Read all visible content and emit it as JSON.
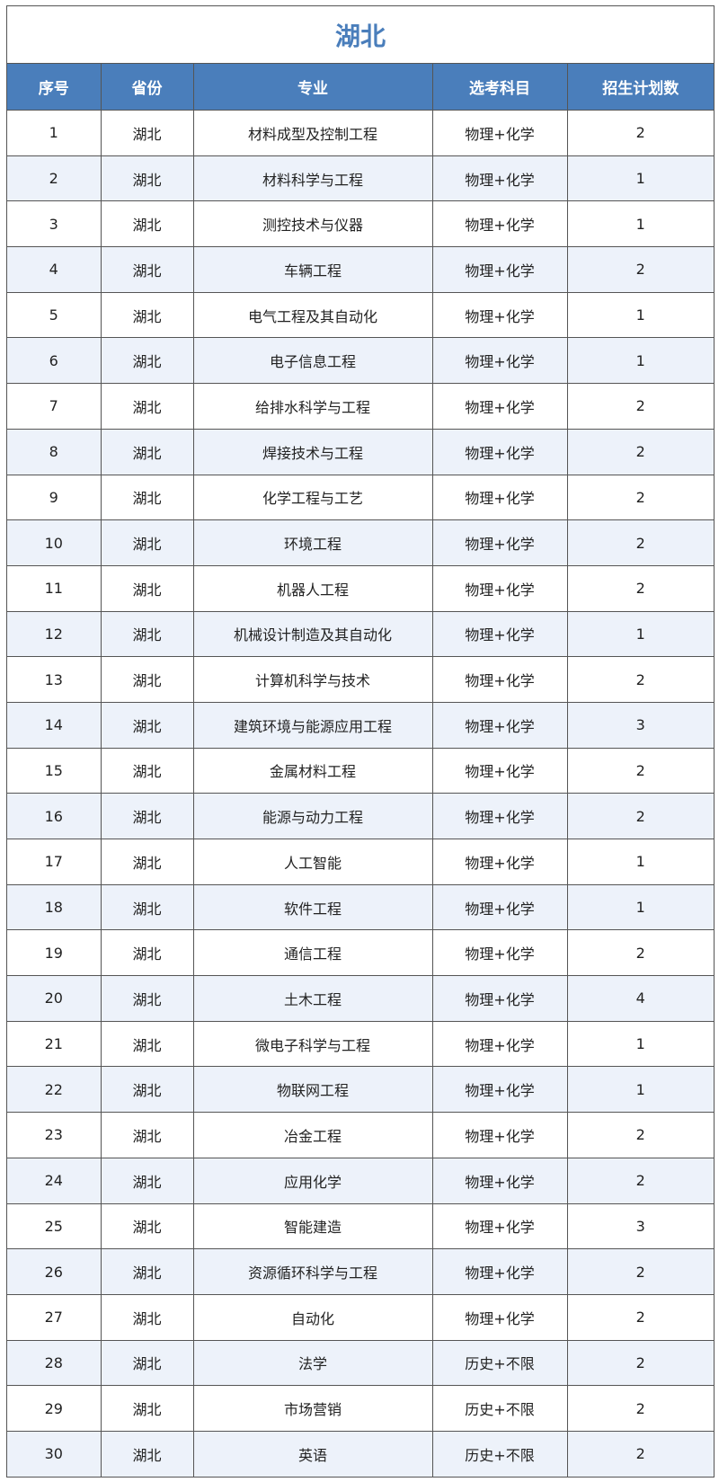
{
  "title": "湖北",
  "columns": [
    "序号",
    "省份",
    "专业",
    "选考科目",
    "招生计划数"
  ],
  "rows": [
    [
      "1",
      "湖北",
      "材料成型及控制工程",
      "物理+化学",
      "2"
    ],
    [
      "2",
      "湖北",
      "材料科学与工程",
      "物理+化学",
      "1"
    ],
    [
      "3",
      "湖北",
      "测控技术与仪器",
      "物理+化学",
      "1"
    ],
    [
      "4",
      "湖北",
      "车辆工程",
      "物理+化学",
      "2"
    ],
    [
      "5",
      "湖北",
      "电气工程及其自动化",
      "物理+化学",
      "1"
    ],
    [
      "6",
      "湖北",
      "电子信息工程",
      "物理+化学",
      "1"
    ],
    [
      "7",
      "湖北",
      "给排水科学与工程",
      "物理+化学",
      "2"
    ],
    [
      "8",
      "湖北",
      "焊接技术与工程",
      "物理+化学",
      "2"
    ],
    [
      "9",
      "湖北",
      "化学工程与工艺",
      "物理+化学",
      "2"
    ],
    [
      "10",
      "湖北",
      "环境工程",
      "物理+化学",
      "2"
    ],
    [
      "11",
      "湖北",
      "机器人工程",
      "物理+化学",
      "2"
    ],
    [
      "12",
      "湖北",
      "机械设计制造及其自动化",
      "物理+化学",
      "1"
    ],
    [
      "13",
      "湖北",
      "计算机科学与技术",
      "物理+化学",
      "2"
    ],
    [
      "14",
      "湖北",
      "建筑环境与能源应用工程",
      "物理+化学",
      "3"
    ],
    [
      "15",
      "湖北",
      "金属材料工程",
      "物理+化学",
      "2"
    ],
    [
      "16",
      "湖北",
      "能源与动力工程",
      "物理+化学",
      "2"
    ],
    [
      "17",
      "湖北",
      "人工智能",
      "物理+化学",
      "1"
    ],
    [
      "18",
      "湖北",
      "软件工程",
      "物理+化学",
      "1"
    ],
    [
      "19",
      "湖北",
      "通信工程",
      "物理+化学",
      "2"
    ],
    [
      "20",
      "湖北",
      "土木工程",
      "物理+化学",
      "4"
    ],
    [
      "21",
      "湖北",
      "微电子科学与工程",
      "物理+化学",
      "1"
    ],
    [
      "22",
      "湖北",
      "物联网工程",
      "物理+化学",
      "1"
    ],
    [
      "23",
      "湖北",
      "冶金工程",
      "物理+化学",
      "2"
    ],
    [
      "24",
      "湖北",
      "应用化学",
      "物理+化学",
      "2"
    ],
    [
      "25",
      "湖北",
      "智能建造",
      "物理+化学",
      "3"
    ],
    [
      "26",
      "湖北",
      "资源循环科学与工程",
      "物理+化学",
      "2"
    ],
    [
      "27",
      "湖北",
      "自动化",
      "物理+化学",
      "2"
    ],
    [
      "28",
      "湖北",
      "法学",
      "历史+不限",
      "2"
    ],
    [
      "29",
      "湖北",
      "市场营销",
      "历史+不限",
      "2"
    ],
    [
      "30",
      "湖北",
      "英语",
      "历史+不限",
      "2"
    ]
  ],
  "colors": {
    "header_bg": "#4a7ebb",
    "title": "#4a7ebb",
    "alt_row": "#edf2fa"
  }
}
